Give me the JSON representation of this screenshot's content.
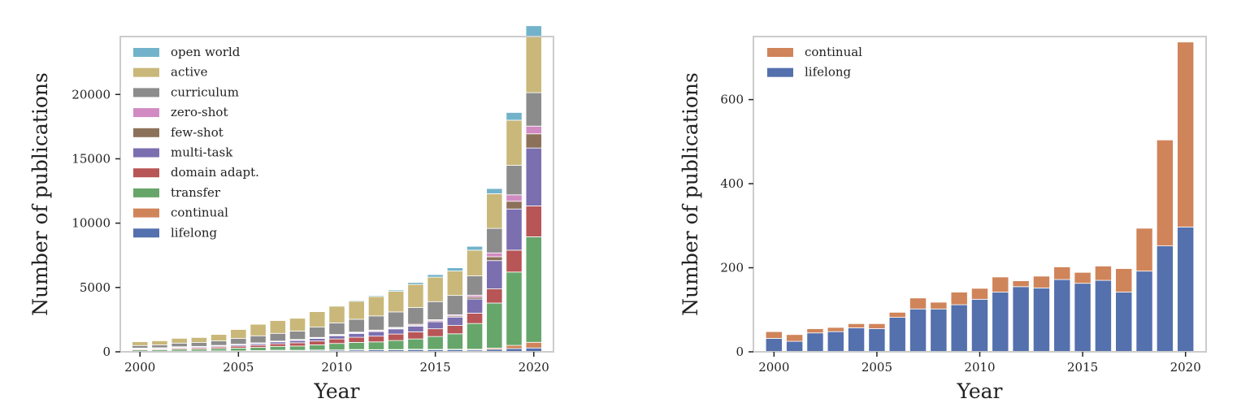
{
  "chart_data": [
    {
      "type": "bar",
      "stacked": true,
      "xlabel": "Year",
      "ylabel": "Number of publications",
      "xlim": [
        1999,
        2021
      ],
      "ylim": [
        0,
        24500
      ],
      "xticks": [
        2000,
        2005,
        2010,
        2015,
        2020
      ],
      "yticks": [
        0,
        5000,
        10000,
        15000,
        20000
      ],
      "legend_position": "upper-left",
      "x": [
        2000,
        2001,
        2002,
        2003,
        2004,
        2005,
        2006,
        2007,
        2008,
        2009,
        2010,
        2011,
        2012,
        2013,
        2014,
        2015,
        2016,
        2017,
        2018,
        2019,
        2020
      ],
      "series": [
        {
          "name": "lifelong",
          "color": "#5470ad",
          "values": [
            30,
            25,
            40,
            45,
            55,
            55,
            80,
            100,
            100,
            110,
            120,
            140,
            150,
            150,
            170,
            160,
            170,
            140,
            190,
            250,
            300
          ]
        },
        {
          "name": "continual",
          "color": "#d0845a",
          "values": [
            20,
            20,
            15,
            15,
            15,
            15,
            15,
            25,
            20,
            30,
            30,
            40,
            20,
            30,
            30,
            30,
            30,
            60,
            100,
            250,
            440
          ]
        },
        {
          "name": "transfer",
          "color": "#66a66a",
          "values": [
            100,
            120,
            150,
            150,
            180,
            220,
            250,
            300,
            330,
            400,
            500,
            550,
            600,
            700,
            800,
            1000,
            1200,
            2000,
            3500,
            5700,
            8200
          ]
        },
        {
          "name": "domain adapt.",
          "color": "#b85556",
          "values": [
            60,
            70,
            90,
            100,
            120,
            150,
            170,
            200,
            250,
            300,
            350,
            400,
            450,
            500,
            550,
            600,
            650,
            800,
            1100,
            1700,
            2400
          ]
        },
        {
          "name": "multi-task",
          "color": "#7b6fb0",
          "values": [
            50,
            50,
            60,
            70,
            80,
            100,
            120,
            150,
            180,
            200,
            250,
            300,
            350,
            400,
            450,
            550,
            650,
            1100,
            2200,
            3200,
            4500
          ]
        },
        {
          "name": "few-shot",
          "color": "#8c715a",
          "values": [
            15,
            15,
            20,
            20,
            25,
            25,
            30,
            30,
            40,
            40,
            50,
            50,
            60,
            60,
            70,
            80,
            90,
            150,
            300,
            600,
            1100
          ]
        },
        {
          "name": "zero-shot",
          "color": "#d18bc2",
          "values": [
            15,
            15,
            20,
            20,
            25,
            25,
            30,
            30,
            40,
            40,
            50,
            50,
            60,
            60,
            70,
            80,
            90,
            150,
            300,
            500,
            600
          ]
        },
        {
          "name": "curriculum",
          "color": "#8c8c8c",
          "values": [
            200,
            220,
            280,
            300,
            350,
            450,
            550,
            600,
            650,
            800,
            900,
            1000,
            1100,
            1200,
            1300,
            1400,
            1500,
            1500,
            1900,
            2300,
            2600
          ]
        },
        {
          "name": "active",
          "color": "#c9b87a",
          "values": [
            300,
            330,
            380,
            400,
            500,
            700,
            900,
            1000,
            1000,
            1200,
            1300,
            1400,
            1500,
            1600,
            1800,
            1900,
            1900,
            2000,
            2700,
            3500,
            4400
          ]
        },
        {
          "name": "open world",
          "color": "#72b3cb",
          "values": [
            15,
            15,
            20,
            20,
            20,
            20,
            25,
            30,
            30,
            40,
            50,
            70,
            80,
            100,
            150,
            200,
            250,
            300,
            400,
            600,
            800
          ]
        }
      ]
    },
    {
      "type": "bar",
      "stacked": true,
      "xlabel": "Year",
      "ylabel": "Number of publications",
      "xlim": [
        1999,
        2021
      ],
      "ylim": [
        0,
        750
      ],
      "xticks": [
        2000,
        2005,
        2010,
        2015,
        2020
      ],
      "yticks": [
        0,
        200,
        400,
        600
      ],
      "legend_position": "upper-left",
      "x": [
        2000,
        2001,
        2002,
        2003,
        2004,
        2005,
        2006,
        2007,
        2008,
        2009,
        2010,
        2011,
        2012,
        2013,
        2014,
        2015,
        2016,
        2017,
        2018,
        2019,
        2020
      ],
      "series": [
        {
          "name": "lifelong",
          "color": "#5470ad",
          "values": [
            32,
            25,
            45,
            48,
            57,
            55,
            82,
            102,
            102,
            112,
            125,
            142,
            155,
            152,
            172,
            163,
            170,
            142,
            192,
            252,
            297
          ]
        },
        {
          "name": "continual",
          "color": "#d0845a",
          "values": [
            16,
            16,
            10,
            10,
            10,
            12,
            12,
            26,
            16,
            30,
            26,
            36,
            14,
            28,
            30,
            26,
            34,
            56,
            102,
            252,
            440
          ]
        }
      ]
    }
  ]
}
